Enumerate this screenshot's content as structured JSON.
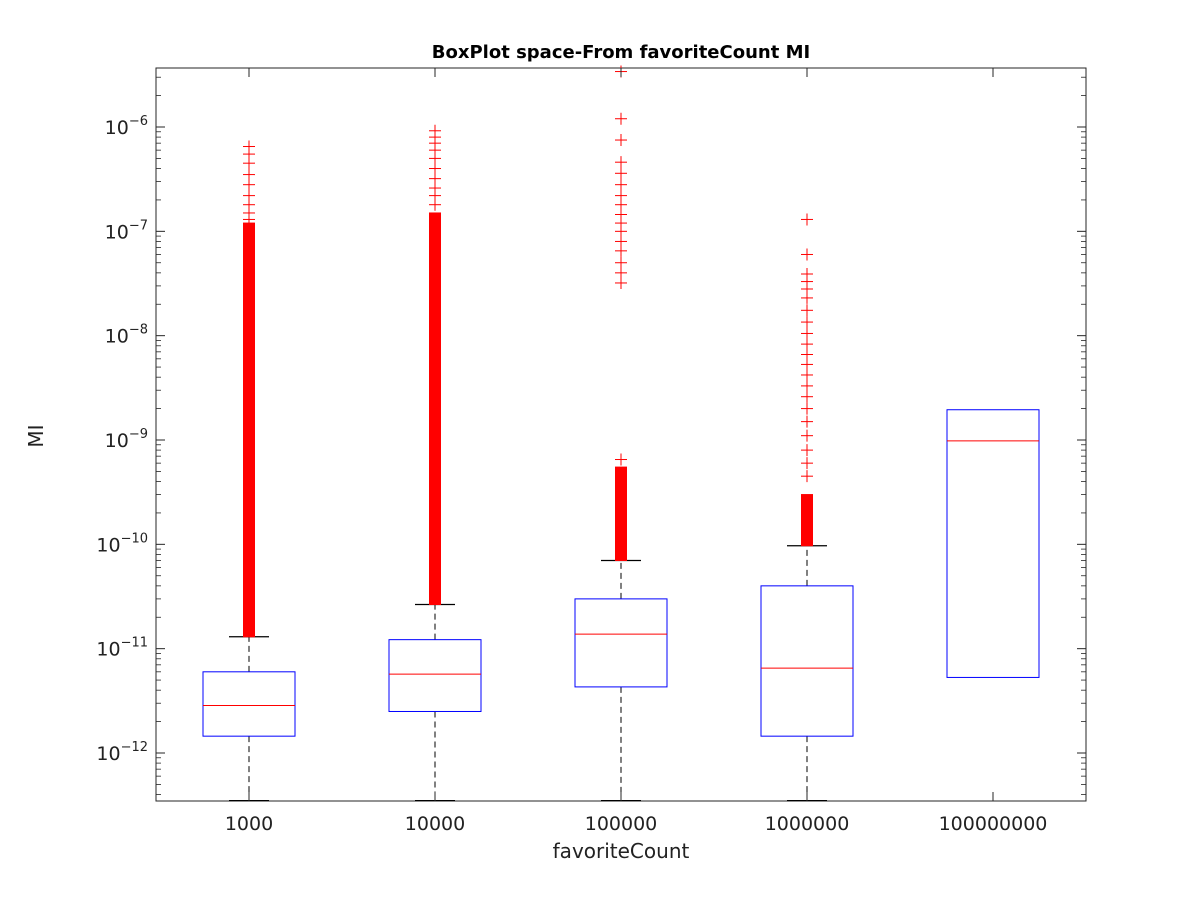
{
  "chart_data": {
    "type": "box",
    "title": "BoxPlot space-From favoriteCount MI",
    "xlabel": "favoriteCount",
    "ylabel": "MI",
    "yscale": "log",
    "ylim": [
      3.5e-13,
      3.5e-06
    ],
    "y_ticks": [
      {
        "value": 1e-12,
        "base": "10",
        "exp": "−12"
      },
      {
        "value": 1e-11,
        "base": "10",
        "exp": "−11"
      },
      {
        "value": 1e-10,
        "base": "10",
        "exp": "−10"
      },
      {
        "value": 1e-09,
        "base": "10",
        "exp": "−9"
      },
      {
        "value": 1e-08,
        "base": "10",
        "exp": "−8"
      },
      {
        "value": 1e-07,
        "base": "10",
        "exp": "−7"
      },
      {
        "value": 1e-06,
        "base": "10",
        "exp": "−6"
      }
    ],
    "categories": [
      "1000",
      "10000",
      "100000",
      "1000000",
      "100000000"
    ],
    "boxes": [
      {
        "q1": 1.45e-12,
        "median": 2.85e-12,
        "q3": 6e-12,
        "whisker_low": 3.5e-13,
        "whisker_high": 1.3e-11,
        "outlier_range": [
          1.3e-11,
          1.2e-07
        ],
        "outliers": [
          1.3e-07,
          1.5e-07,
          1.8e-07,
          2.2e-07,
          2.8e-07,
          3.5e-07,
          4.5e-07,
          5.5e-07,
          6.5e-07,
          5.5e-10,
          6.5e-10,
          8.5e-10
        ]
      },
      {
        "q1": 2.5e-12,
        "median": 5.7e-12,
        "q3": 1.22e-11,
        "whisker_low": 3.5e-13,
        "whisker_high": 2.65e-11,
        "outlier_range": [
          2.65e-11,
          1.5e-07
        ],
        "outliers": [
          1.8e-07,
          2.2e-07,
          2.6e-07,
          3.2e-07,
          4e-07,
          5e-07,
          6e-07,
          7e-07,
          8e-07,
          9.2e-07
        ]
      },
      {
        "q1": 4.3e-12,
        "median": 1.38e-11,
        "q3": 3e-11,
        "whisker_low": 3.5e-13,
        "whisker_high": 7e-11,
        "outlier_range": [
          7e-11,
          5.5e-10
        ],
        "outliers": [
          6.5e-10,
          3.2e-08,
          4e-08,
          5e-08,
          6.5e-08,
          8e-08,
          1e-07,
          1.2e-07,
          1.45e-07,
          1.8e-07,
          2.2e-07,
          2.8e-07,
          3.6e-07,
          4.6e-07,
          7.5e-07,
          1.2e-06,
          3.4e-06
        ]
      },
      {
        "q1": 1.45e-12,
        "median": 6.5e-12,
        "q3": 4e-11,
        "whisker_low": 3.5e-13,
        "whisker_high": 9.7e-11,
        "outlier_range": [
          9.7e-11,
          3e-10
        ],
        "outliers": [
          4.5e-10,
          6e-10,
          8e-10,
          1.1e-09,
          1.5e-09,
          2e-09,
          2.6e-09,
          3.3e-09,
          4.2e-09,
          5.3e-09,
          6.6e-09,
          8.3e-09,
          1.05e-08,
          1.35e-08,
          1.75e-08,
          2.3e-08,
          2.8e-08,
          3.3e-08,
          3.9e-08,
          6e-08,
          1.3e-07
        ]
      },
      {
        "q1": 5.3e-12,
        "median": 9.8e-10,
        "q3": 1.95e-09,
        "whisker_low": null,
        "whisker_high": null,
        "outlier_range": null,
        "outliers": []
      }
    ],
    "colors": {
      "box": "#0000ff",
      "median": "#ff0000",
      "outlier": "#ff0000",
      "whisker": "#000000",
      "axis": "#262626"
    },
    "grid": false,
    "legend": "none"
  }
}
